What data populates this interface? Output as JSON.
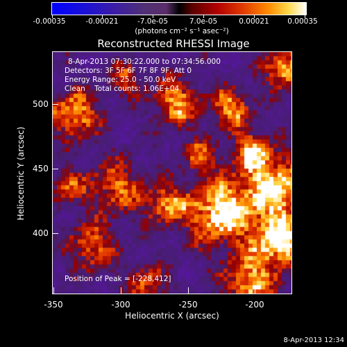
{
  "colorbar": {
    "tick_labels": [
      "-0.00035",
      "-0.00021",
      "-7.0e-05",
      "7.0e-05",
      "0.00021",
      "0.00035"
    ],
    "units": "(photons cm⁻² s⁻¹ asec⁻²)"
  },
  "title": "Reconstructed RHESSI Image",
  "info": {
    "time_range": "8-Apr-2013 07:30:22.000 to 07:34:56.000",
    "detectors": "Detectors: 3F 5F 6F 7F 8F 9F, Att 0",
    "energy_range": "Energy Range: 25.0 - 50.0 keV",
    "clean_counts": "Clean    Total counts: 1.06E+04",
    "peak_position": "Position of Peak = [-228,412]"
  },
  "x_axis": {
    "label": "Heliocentric X (arcsec)",
    "tick_labels": [
      "-350",
      "-300",
      "-250",
      "-200"
    ]
  },
  "y_axis": {
    "label": "Heliocentric Y (arcsec)",
    "tick_labels": [
      "500",
      "450",
      "400"
    ]
  },
  "footer_date": "8-Apr-2013 12:34",
  "colors": {
    "negative_end": "#0000ff",
    "zero": "#000000",
    "positive_end": "#ffffff",
    "background": "#000000"
  }
}
